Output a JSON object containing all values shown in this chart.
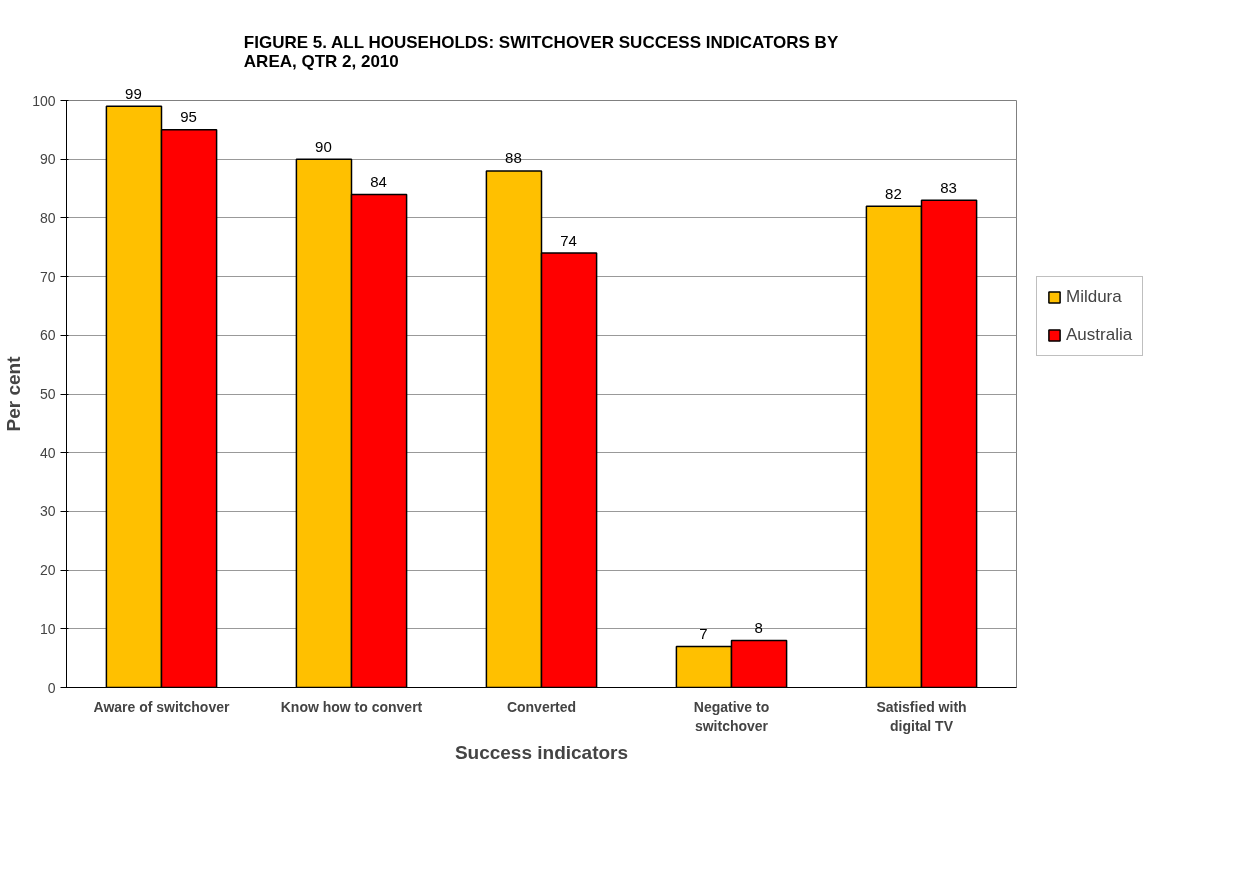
{
  "chart_data": {
    "type": "bar",
    "title": "FIGURE 5. ALL HOUSEHOLDS: SWITCHOVER SUCCESS INDICATORS BY AREA, QTR 2, 2010",
    "xlabel": "Success indicators",
    "ylabel": "Per cent",
    "categories": [
      "Aware of switchover",
      "Know how to convert",
      "Converted",
      "Negative to switchover",
      "Satisfied with digital TV"
    ],
    "series": [
      {
        "name": "Mildura",
        "color": "#ffc000",
        "values": [
          99,
          90,
          88,
          7,
          82
        ]
      },
      {
        "name": "Australia",
        "color": "#ff0000",
        "values": [
          95,
          84,
          74,
          8,
          83
        ]
      }
    ],
    "ylim": [
      0,
      100
    ],
    "yticks": [
      0,
      10,
      20,
      30,
      40,
      50,
      60,
      70,
      80,
      90,
      100
    ],
    "grid": "y",
    "legend": "right",
    "data_labels": true
  }
}
